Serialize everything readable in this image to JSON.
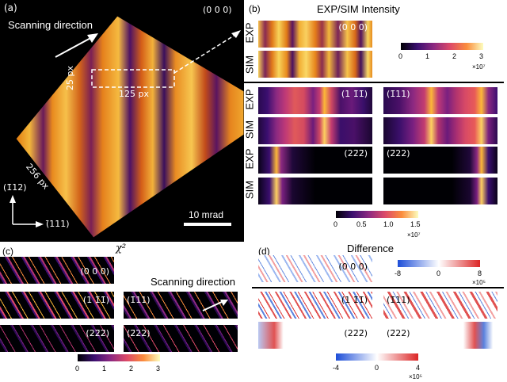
{
  "panel_a": {
    "label": "(a)",
    "hkl": "(0 0 0)",
    "scan_label": "Scanning direction",
    "roi_h": "25 px",
    "roi_w": "125 px",
    "diag": "256 px",
    "axis_v": "(1̄12)",
    "axis_h": "(̄111)",
    "scalebar": "10 mrad"
  },
  "panel_b": {
    "label": "(b)",
    "title": "EXP/SIM Intensity",
    "exp": "EXP",
    "sim": "SIM",
    "hkl_000": "(0 0 0)",
    "hkl_1a": "(1 1̄1̄)",
    "hkl_1b": "(1̄11)",
    "hkl_2a": "(22̄2̄)",
    "hkl_2b": "(2̄22)",
    "cb1": {
      "ticks": [
        "0",
        "1",
        "2",
        "3"
      ],
      "unit": "×10⁷"
    },
    "cb2": {
      "ticks": [
        "0",
        "0.5",
        "1.0",
        "1.5"
      ],
      "unit": "×10⁷"
    }
  },
  "panel_c": {
    "label": "(c)",
    "title": "χ²",
    "scan_label": "Scanning direction",
    "hkl_000": "(0 0 0)",
    "hkl_1a": "(1 1̄1̄)",
    "hkl_1b": "(1̄11)",
    "hkl_2a": "(22̄2̄)",
    "hkl_2b": "(2̄22)",
    "cb": {
      "ticks": [
        "0",
        "1",
        "2",
        "3"
      ]
    }
  },
  "panel_d": {
    "label": "(d)",
    "title": "Difference",
    "hkl_000": "(0 0 0)",
    "hkl_1a": "(1 1̄1̄)",
    "hkl_1b": "(1̄11)",
    "hkl_2a": "(22̄2̄)",
    "hkl_2b": "(2̄22)",
    "cb1": {
      "ticks": [
        "-8",
        "0",
        "8"
      ],
      "unit": "×10⁵"
    },
    "cb2": {
      "ticks": [
        "-4",
        "0",
        "4"
      ],
      "unit": "×10⁵"
    }
  },
  "colors": {
    "inferno_mid": "#c2410c",
    "bg": "#000000",
    "bwr_neg": "#1d4ed8",
    "bwr_pos": "#dc2626"
  }
}
